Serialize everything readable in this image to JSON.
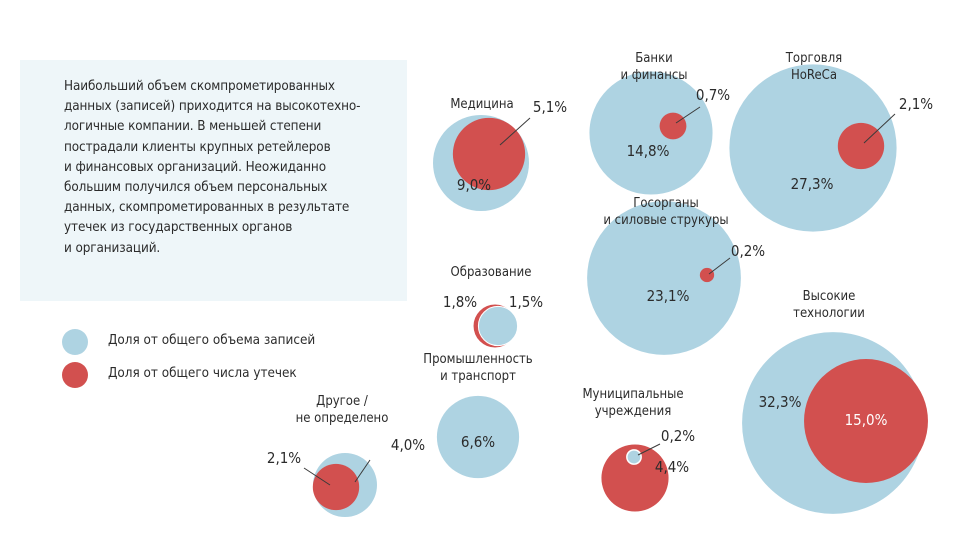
{
  "colors": {
    "records": "#aed3e2",
    "leaks": "#d2504f",
    "info_bg": "#eef6f9",
    "text": "#2b2b2b"
  },
  "info_text": "Наибольший объем скомпрометированных\nданных (записей) приходится на высокотехно-\nлогичные компании. В меньшей степени\nпострадали клиенты крупных ретейлеров\nи финансовых организаций. Неожиданно\nбольшим получился объем персональных\nданных, скомпрометированных в результате\nутечек из государственных органов\nи организаций.",
  "legend": [
    {
      "label": "Доля от общего объема записей",
      "color": "#aed3e2"
    },
    {
      "label": "Доля от общего числа утечек",
      "color": "#d2504f"
    }
  ],
  "chart_data": {
    "type": "bubble",
    "series": [
      {
        "name": "Доля от общего объема записей",
        "color": "#aed3e2"
      },
      {
        "name": "Доля от общего числа утечек",
        "color": "#d2504f"
      }
    ],
    "categories": [
      {
        "label": [
          "Медицина"
        ],
        "records": 9.0,
        "leaks": 5.1,
        "records_label": "9,0%",
        "leaks_label": "5,1%"
      },
      {
        "label": [
          "Банки",
          "и финансы"
        ],
        "records": 14.8,
        "leaks": 0.7,
        "records_label": "14,8%",
        "leaks_label": "0,7%"
      },
      {
        "label": [
          "Торговля",
          "HoReCa"
        ],
        "records": 27.3,
        "leaks": 2.1,
        "records_label": "27,3%",
        "leaks_label": "2,1%"
      },
      {
        "label": [
          "Госорганы",
          "и силовые струкуры"
        ],
        "records": 23.1,
        "leaks": 0.2,
        "records_label": "23,1%",
        "leaks_label": "0,2%"
      },
      {
        "label": [
          "Образование"
        ],
        "records": 1.5,
        "leaks": 1.8,
        "records_label": "1,5%",
        "leaks_label": "1,8%"
      },
      {
        "label": [
          "Высокие",
          "технологии"
        ],
        "records": 32.3,
        "leaks": 15.0,
        "records_label": "32,3%",
        "leaks_label": "15,0%"
      },
      {
        "label": [
          "Промышленность",
          "и транспорт"
        ],
        "records": 6.6,
        "leaks": null,
        "records_label": "6,6%",
        "leaks_label": ""
      },
      {
        "label": [
          "Муниципальные",
          "учреждения"
        ],
        "records": 0.2,
        "leaks": 4.4,
        "records_label": "0,2%",
        "leaks_label": "4,4%"
      },
      {
        "label": [
          "Другое /",
          "не определено"
        ],
        "records": 4.0,
        "leaks": 2.1,
        "records_label": "4,0%",
        "leaks_label": "2,1%"
      }
    ]
  }
}
